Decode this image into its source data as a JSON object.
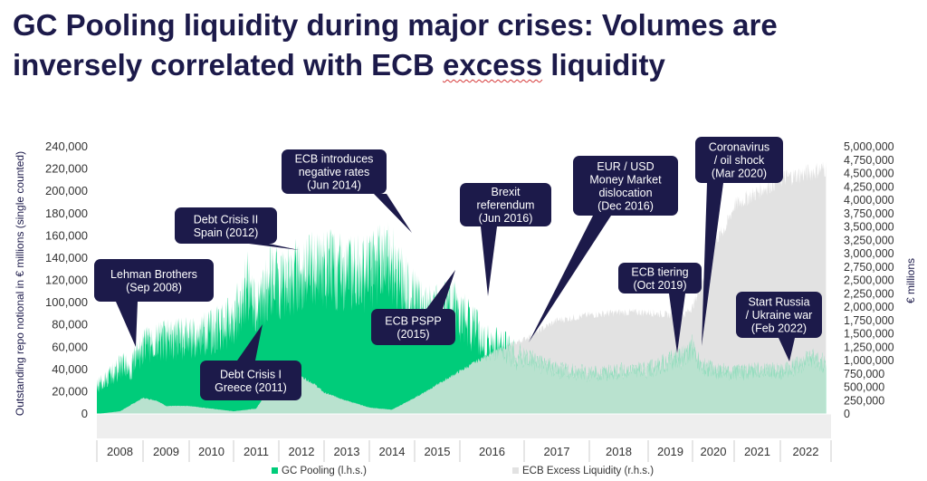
{
  "title": {
    "line1": "GC Pooling liquidity during major crises: Volumes are",
    "line2_prefix": "inversely correlated with ECB ",
    "line2_underlined": "excess",
    "line2_suffix": " liquidity"
  },
  "colors": {
    "gc_pooling": "#00cc7a",
    "excess_liquidity": "#e2e2e2",
    "overlap": "#b9e2cf",
    "callout_bg": "#1c1a4a",
    "title": "#1c1a4a",
    "axis_text": "#333333"
  },
  "chart_data": {
    "type": "area",
    "title": "GC Pooling liquidity during major crises: Volumes are inversely correlated with ECB excess liquidity",
    "ylabel_left": "Outstanding repo notional in € millions (single counted)",
    "ylabel_right": "€ millions",
    "ylim_left": [
      0,
      240000
    ],
    "ylim_right": [
      0,
      5000000
    ],
    "yticks_left": [
      "240,000",
      "220,000",
      "200,000",
      "180,000",
      "160,000",
      "140,000",
      "120,000",
      "100,000",
      "80,000",
      "60,000",
      "40,000",
      "20,000",
      "0"
    ],
    "yticks_right": [
      "5,000,000",
      "4,750,000",
      "4,500,000",
      "4,250,000",
      "4,000,000",
      "3,750,000",
      "3,500,000",
      "3,250,000",
      "3,000,000",
      "2,750,000",
      "2,500,000",
      "2,250,000",
      "2,000,000",
      "1,750,000",
      "1,500,000",
      "1,250,000",
      "1,000,000",
      "750,000",
      "500,000",
      "250,000",
      "0"
    ],
    "x_labels": [
      "2008",
      "2009",
      "2010",
      "2011",
      "2012",
      "2013",
      "2014",
      "2015",
      "2016",
      "2017",
      "2018",
      "2019",
      "2020",
      "2021",
      "2022"
    ],
    "legend_position": "bottom",
    "series": [
      {
        "name": "GC Pooling (l.h.s.)",
        "axis": "left",
        "x": [
          2008.0,
          2008.3,
          2008.6,
          2008.7,
          2009.0,
          2009.5,
          2010.0,
          2010.5,
          2011.0,
          2011.3,
          2011.5,
          2011.8,
          2012.0,
          2012.5,
          2013.0,
          2013.5,
          2014.0,
          2014.4,
          2014.6,
          2015.0,
          2015.4,
          2015.8,
          2016.0,
          2016.4,
          2016.8,
          2016.9,
          2017.5,
          2018.0,
          2018.5,
          2019.0,
          2019.5,
          2019.8,
          2020.0,
          2020.2,
          2020.5,
          2021.0,
          2021.5,
          2022.0,
          2022.3,
          2022.6,
          2022.9
        ],
        "values": [
          32000,
          45000,
          58000,
          50000,
          78000,
          85000,
          88000,
          95000,
          108000,
          150000,
          118000,
          155000,
          150000,
          162000,
          170000,
          160000,
          165000,
          180000,
          165000,
          130000,
          115000,
          125000,
          115000,
          85000,
          72000,
          65000,
          48000,
          44000,
          46000,
          48000,
          58000,
          62000,
          75000,
          52000,
          48000,
          44000,
          48000,
          46000,
          52000,
          60000,
          55000
        ]
      },
      {
        "name": "ECB Excess Liquidity (r.h.s.)",
        "axis": "right",
        "x": [
          2008.0,
          2008.5,
          2008.8,
          2009.0,
          2009.3,
          2009.5,
          2010.0,
          2010.5,
          2011.0,
          2011.5,
          2011.8,
          2012.0,
          2012.2,
          2012.5,
          2012.8,
          2013.0,
          2013.5,
          2014.0,
          2014.5,
          2015.0,
          2015.5,
          2016.0,
          2016.5,
          2017.0,
          2017.5,
          2018.0,
          2018.5,
          2019.0,
          2019.5,
          2019.8,
          2020.0,
          2020.3,
          2020.5,
          2020.8,
          2021.0,
          2021.5,
          2022.0,
          2022.5,
          2022.9
        ],
        "values": [
          0,
          50000,
          200000,
          300000,
          250000,
          150000,
          150000,
          100000,
          50000,
          100000,
          500000,
          700000,
          800000,
          700000,
          550000,
          400000,
          250000,
          120000,
          80000,
          300000,
          550000,
          800000,
          1150000,
          1400000,
          1750000,
          1850000,
          1900000,
          1900000,
          1850000,
          1850000,
          2000000,
          2600000,
          3200000,
          3500000,
          3900000,
          4150000,
          4400000,
          4500000,
          4600000
        ]
      }
    ],
    "annotations": [
      {
        "lines": [
          "Lehman Brothers",
          "(Sep 2008)"
        ]
      },
      {
        "lines": [
          "Debt Crisis II",
          "Spain (2012)"
        ]
      },
      {
        "lines": [
          "ECB introduces",
          "negative rates",
          "(Jun 2014)"
        ]
      },
      {
        "lines": [
          "Debt Crisis I",
          "Greece (2011)"
        ]
      },
      {
        "lines": [
          "ECB PSPP",
          "(2015)"
        ]
      },
      {
        "lines": [
          "Brexit",
          "referendum",
          "(Jun 2016)"
        ]
      },
      {
        "lines": [
          "EUR / USD",
          "Money Market",
          "dislocation",
          "(Dec 2016)"
        ]
      },
      {
        "lines": [
          "Coronavirus",
          "/ oil shock",
          "(Mar 2020)"
        ]
      },
      {
        "lines": [
          "ECB tiering",
          "(Oct 2019)"
        ]
      },
      {
        "lines": [
          "Start Russia",
          "/ Ukraine war",
          "(Feb 2022)"
        ]
      }
    ]
  }
}
